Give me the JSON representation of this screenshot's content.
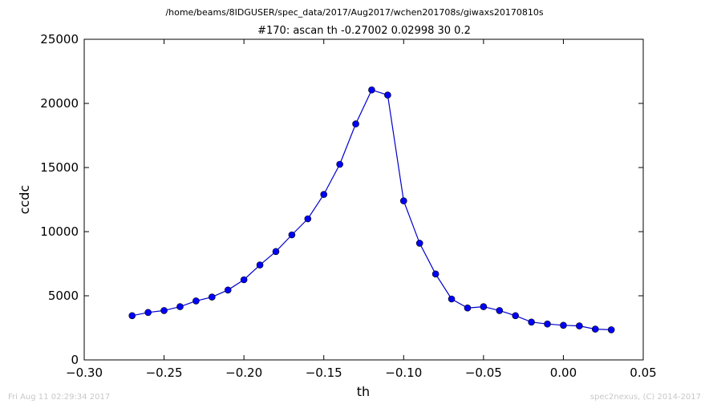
{
  "suptitle": "/home/beams/8IDGUSER/spec_data/2017/Aug2017/wchen201708s/giwaxs20170810s",
  "footer": {
    "timestamp": "Fri Aug 11 02:29:34 2017",
    "credit": "spec2nexus, (C) 2014-2017"
  },
  "chart_data": {
    "type": "line",
    "title": "#170: ascan  th -0.27002 0.02998  30 0.2",
    "xlabel": "th",
    "ylabel": "ccdc",
    "xlim": [
      -0.3,
      0.05
    ],
    "ylim": [
      0,
      25000
    ],
    "xticks": [
      -0.3,
      -0.25,
      -0.2,
      -0.15,
      -0.1,
      -0.05,
      0.0,
      0.05
    ],
    "xtick_labels": [
      "−0.30",
      "−0.25",
      "−0.20",
      "−0.15",
      "−0.10",
      "−0.05",
      "0.00",
      "0.05"
    ],
    "yticks": [
      0,
      5000,
      10000,
      15000,
      20000,
      25000
    ],
    "ytick_labels": [
      "0",
      "5000",
      "10000",
      "15000",
      "20000",
      "25000"
    ],
    "grid": false,
    "series_color": "#0000cc",
    "marker_color": "#0000ff",
    "series": [
      {
        "x": [
          -0.27,
          -0.26,
          -0.25,
          -0.24,
          -0.23,
          -0.22,
          -0.21,
          -0.2,
          -0.19,
          -0.18,
          -0.17,
          -0.16,
          -0.15,
          -0.14,
          -0.13,
          -0.12,
          -0.11,
          -0.1,
          -0.09,
          -0.08,
          -0.07,
          -0.06,
          -0.05,
          -0.04,
          -0.03,
          -0.02,
          -0.01,
          0.0,
          0.01,
          0.02,
          0.03
        ],
        "y": [
          3450,
          3700,
          3850,
          4150,
          4600,
          4900,
          5450,
          6250,
          7400,
          8450,
          9750,
          11000,
          12900,
          15250,
          18400,
          21050,
          20650,
          12400,
          9100,
          6700,
          4750,
          4050,
          4150,
          3850,
          3450,
          2950,
          2800,
          2700,
          2650,
          2400,
          2350
        ]
      }
    ]
  }
}
